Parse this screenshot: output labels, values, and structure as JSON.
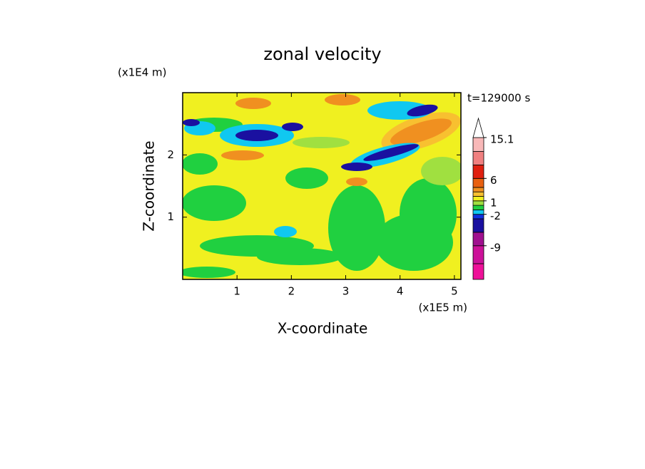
{
  "chart_data": {
    "type": "contour",
    "title": "zonal velocity",
    "y_unit": "(x1E4 m)",
    "x_unit": "(x1E5 m)",
    "time_label": "t=129000 s",
    "x_label": "X-coordinate",
    "y_label": "Z-coordinate",
    "xlim": [
      0,
      5.12
    ],
    "xticks": [
      1,
      2,
      3,
      4,
      5
    ],
    "ylim": [
      0,
      3
    ],
    "yticks": [
      1,
      2
    ],
    "colorbar": {
      "clim": [
        -16.5,
        15.1
      ],
      "levels": [
        -16.5,
        -13,
        -9,
        -6,
        -3,
        -2,
        -1,
        0,
        1,
        2,
        3,
        4,
        6,
        9,
        12,
        15.1
      ],
      "colors": [
        "#ee1199",
        "#cc1199",
        "#a0108f",
        "#1a10a0",
        "#1030e0",
        "#10c8f0",
        "#20d040",
        "#a0e040",
        "#f0f020",
        "#f8c030",
        "#f09020",
        "#e86010",
        "#e02010",
        "#f08080",
        "#f8b8b8"
      ],
      "extend_color": "#ffffff",
      "ticks": [
        15.1,
        6,
        1,
        -2,
        -9
      ]
    }
  }
}
